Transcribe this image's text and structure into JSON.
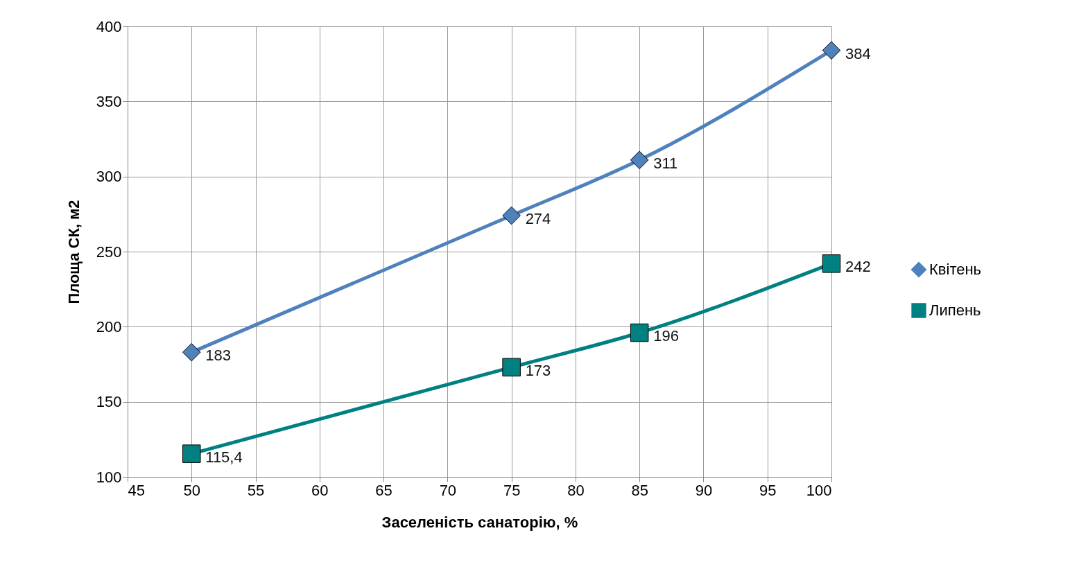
{
  "chart_data": {
    "type": "line",
    "xlabel": "Заселеність санаторію, %",
    "ylabel": "Площа СК, м2",
    "x": [
      50,
      75,
      85,
      100
    ],
    "series": [
      {
        "name": "Квітень",
        "color": "#4f81bd",
        "marker": "diamond",
        "values": [
          183,
          274,
          311,
          384
        ],
        "value_labels": [
          "183",
          "274",
          "311",
          "384"
        ]
      },
      {
        "name": "Липень",
        "color": "#008080",
        "marker": "square",
        "values": [
          115.4,
          173,
          196,
          242
        ],
        "value_labels": [
          "115,4",
          "173",
          "196",
          "242"
        ]
      }
    ],
    "xlim": [
      45,
      100
    ],
    "xticks": [
      45,
      50,
      55,
      60,
      65,
      70,
      75,
      80,
      85,
      90,
      95,
      100
    ],
    "ylim": [
      100,
      400
    ],
    "yticks": [
      100,
      150,
      200,
      250,
      300,
      350,
      400
    ],
    "grid": true,
    "legend": "right"
  }
}
